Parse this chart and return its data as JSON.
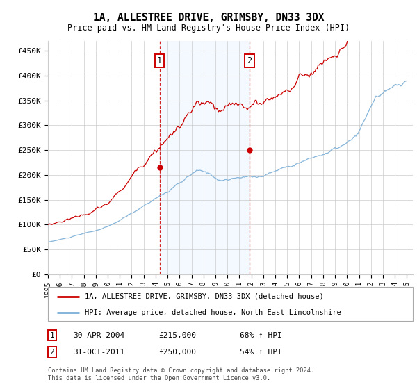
{
  "title": "1A, ALLESTREE DRIVE, GRIMSBY, DN33 3DX",
  "subtitle": "Price paid vs. HM Land Registry's House Price Index (HPI)",
  "ylabel_ticks": [
    "£0",
    "£50K",
    "£100K",
    "£150K",
    "£200K",
    "£250K",
    "£300K",
    "£350K",
    "£400K",
    "£450K"
  ],
  "ytick_values": [
    0,
    50000,
    100000,
    150000,
    200000,
    250000,
    300000,
    350000,
    400000,
    450000
  ],
  "ylim": [
    0,
    470000
  ],
  "xlim_start": 1995.0,
  "xlim_end": 2025.5,
  "purchase1_date": 2004.33,
  "purchase1_price": 215000,
  "purchase2_date": 2011.83,
  "purchase2_price": 250000,
  "hpi_color": "#7aaed6",
  "property_color": "#cc0000",
  "shade_color": "#ddeeff",
  "legend_property": "1A, ALLESTREE DRIVE, GRIMSBY, DN33 3DX (detached house)",
  "legend_hpi": "HPI: Average price, detached house, North East Lincolnshire",
  "annotation1_date": "30-APR-2004",
  "annotation1_price": "£215,000",
  "annotation1_hpi": "68% ↑ HPI",
  "annotation2_date": "31-OCT-2011",
  "annotation2_price": "£250,000",
  "annotation2_hpi": "54% ↑ HPI",
  "footer": "Contains HM Land Registry data © Crown copyright and database right 2024.\nThis data is licensed under the Open Government Licence v3.0.",
  "background_color": "#ffffff",
  "grid_color": "#cccccc"
}
